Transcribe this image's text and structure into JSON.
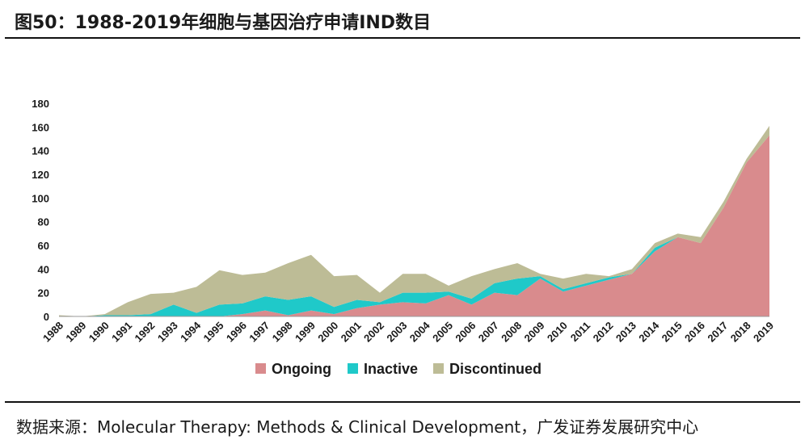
{
  "header": {
    "title": "图50：1988-2019年细胞与基因治疗申请IND数目"
  },
  "footer": {
    "source": "数据来源：Molecular Therapy: Methods & Clinical Development，广发证券发展研究中心"
  },
  "chart_data": {
    "type": "area",
    "stacked": true,
    "title": "1988-2019年细胞与基因治疗申请IND数目",
    "xlabel": "",
    "ylabel": "",
    "ylim": [
      0,
      180
    ],
    "yticks": [
      0,
      20,
      40,
      60,
      80,
      100,
      120,
      140,
      160,
      180
    ],
    "x": [
      "1988",
      "1989",
      "1990",
      "1991",
      "1992",
      "1993",
      "1994",
      "1995",
      "1996",
      "1997",
      "1998",
      "1999",
      "2000",
      "2001",
      "2002",
      "2003",
      "2004",
      "2005",
      "2006",
      "2007",
      "2008",
      "2009",
      "2010",
      "2011",
      "2012",
      "2013",
      "2014",
      "2015",
      "2016",
      "2017",
      "2018",
      "2019"
    ],
    "series": [
      {
        "name": "Ongoing",
        "color": "#d98b8d",
        "values": [
          0,
          0,
          0,
          0,
          0,
          0,
          0,
          0,
          2,
          5,
          1,
          5,
          2,
          7,
          10,
          12,
          11,
          18,
          10,
          20,
          18,
          32,
          21,
          26,
          31,
          36,
          55,
          67,
          62,
          92,
          130,
          153
        ]
      },
      {
        "name": "Inactive",
        "color": "#1fc9c9",
        "values": [
          0,
          0,
          1,
          1,
          2,
          10,
          3,
          10,
          9,
          12,
          13,
          12,
          6,
          7,
          2,
          8,
          9,
          3,
          5,
          8,
          14,
          2,
          2,
          2,
          2,
          0,
          3,
          0,
          0,
          0,
          0,
          0
        ]
      },
      {
        "name": "Discontinued",
        "color": "#bdbc96",
        "values": [
          1,
          0,
          1,
          11,
          17,
          10,
          22,
          29,
          24,
          20,
          31,
          35,
          26,
          21,
          8,
          16,
          16,
          5,
          19,
          12,
          13,
          2,
          9,
          8,
          1,
          4,
          4,
          3,
          5,
          5,
          3,
          8
        ]
      }
    ],
    "legend": {
      "placement": "bottom-center",
      "entries": [
        "Ongoing",
        "Inactive",
        "Discontinued"
      ]
    },
    "grid": false
  }
}
